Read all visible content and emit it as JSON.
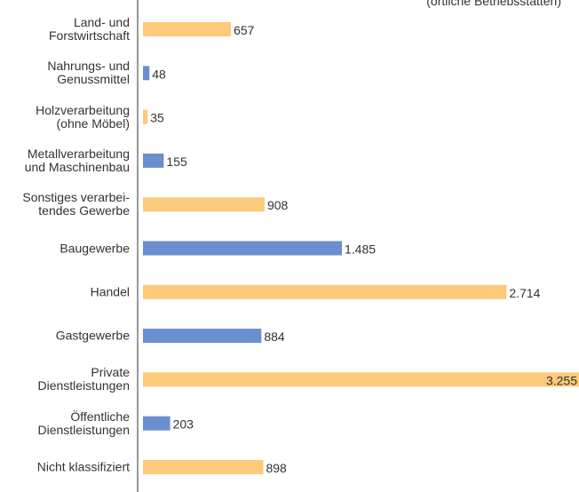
{
  "chart_data": {
    "type": "bar",
    "orientation": "horizontal",
    "subtitle": "(örtliche Betriebsstätten)",
    "categories": [
      "Land- und\nForstwirtschaft",
      "Nahrungs- und\nGenussmittel",
      "Holzverarbeitung\n(ohne Möbel)",
      "Metallverarbeitung\nund Maschinenbau",
      "Sonstiges verarbei-\ntendes Gewerbe",
      "Baugewerbe",
      "Handel",
      "Gastgewerbe",
      "Private\nDienstleistungen",
      "Öffentliche\nDienstleistungen",
      "Nicht klassifiziert"
    ],
    "values": [
      657,
      48,
      35,
      155,
      908,
      1485,
      2714,
      884,
      3255,
      203,
      898
    ],
    "value_labels": [
      "657",
      "48",
      "35",
      "155",
      "908",
      "1.485",
      "2.714",
      "884",
      "3.255",
      "203",
      "898"
    ],
    "colors": [
      "#fdc97a",
      "#6a8fd0",
      "#fdc97a",
      "#6a8fd0",
      "#fdc97a",
      "#6a8fd0",
      "#fdc97a",
      "#6a8fd0",
      "#fdc97a",
      "#6a8fd0",
      "#fdc97a"
    ]
  }
}
